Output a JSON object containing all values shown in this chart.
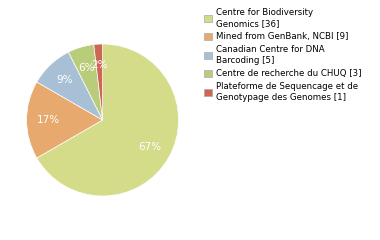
{
  "labels": [
    "Centre for Biodiversity\nGenomics [36]",
    "Mined from GenBank, NCBI [9]",
    "Canadian Centre for DNA\nBarcoding [5]",
    "Centre de recherche du CHUQ [3]",
    "Plateforme de Sequencage et de\nGenotypage des Genomes [1]"
  ],
  "values": [
    36,
    9,
    5,
    3,
    1
  ],
  "colors": [
    "#d4dc8a",
    "#e8a96e",
    "#a8c0d6",
    "#b8cc7a",
    "#cc6655"
  ],
  "startangle": 90,
  "background_color": "#ffffff",
  "pct_color": "white",
  "fontsize_pct": 7.5,
  "fontsize_legend": 6.2,
  "counterclock": false
}
